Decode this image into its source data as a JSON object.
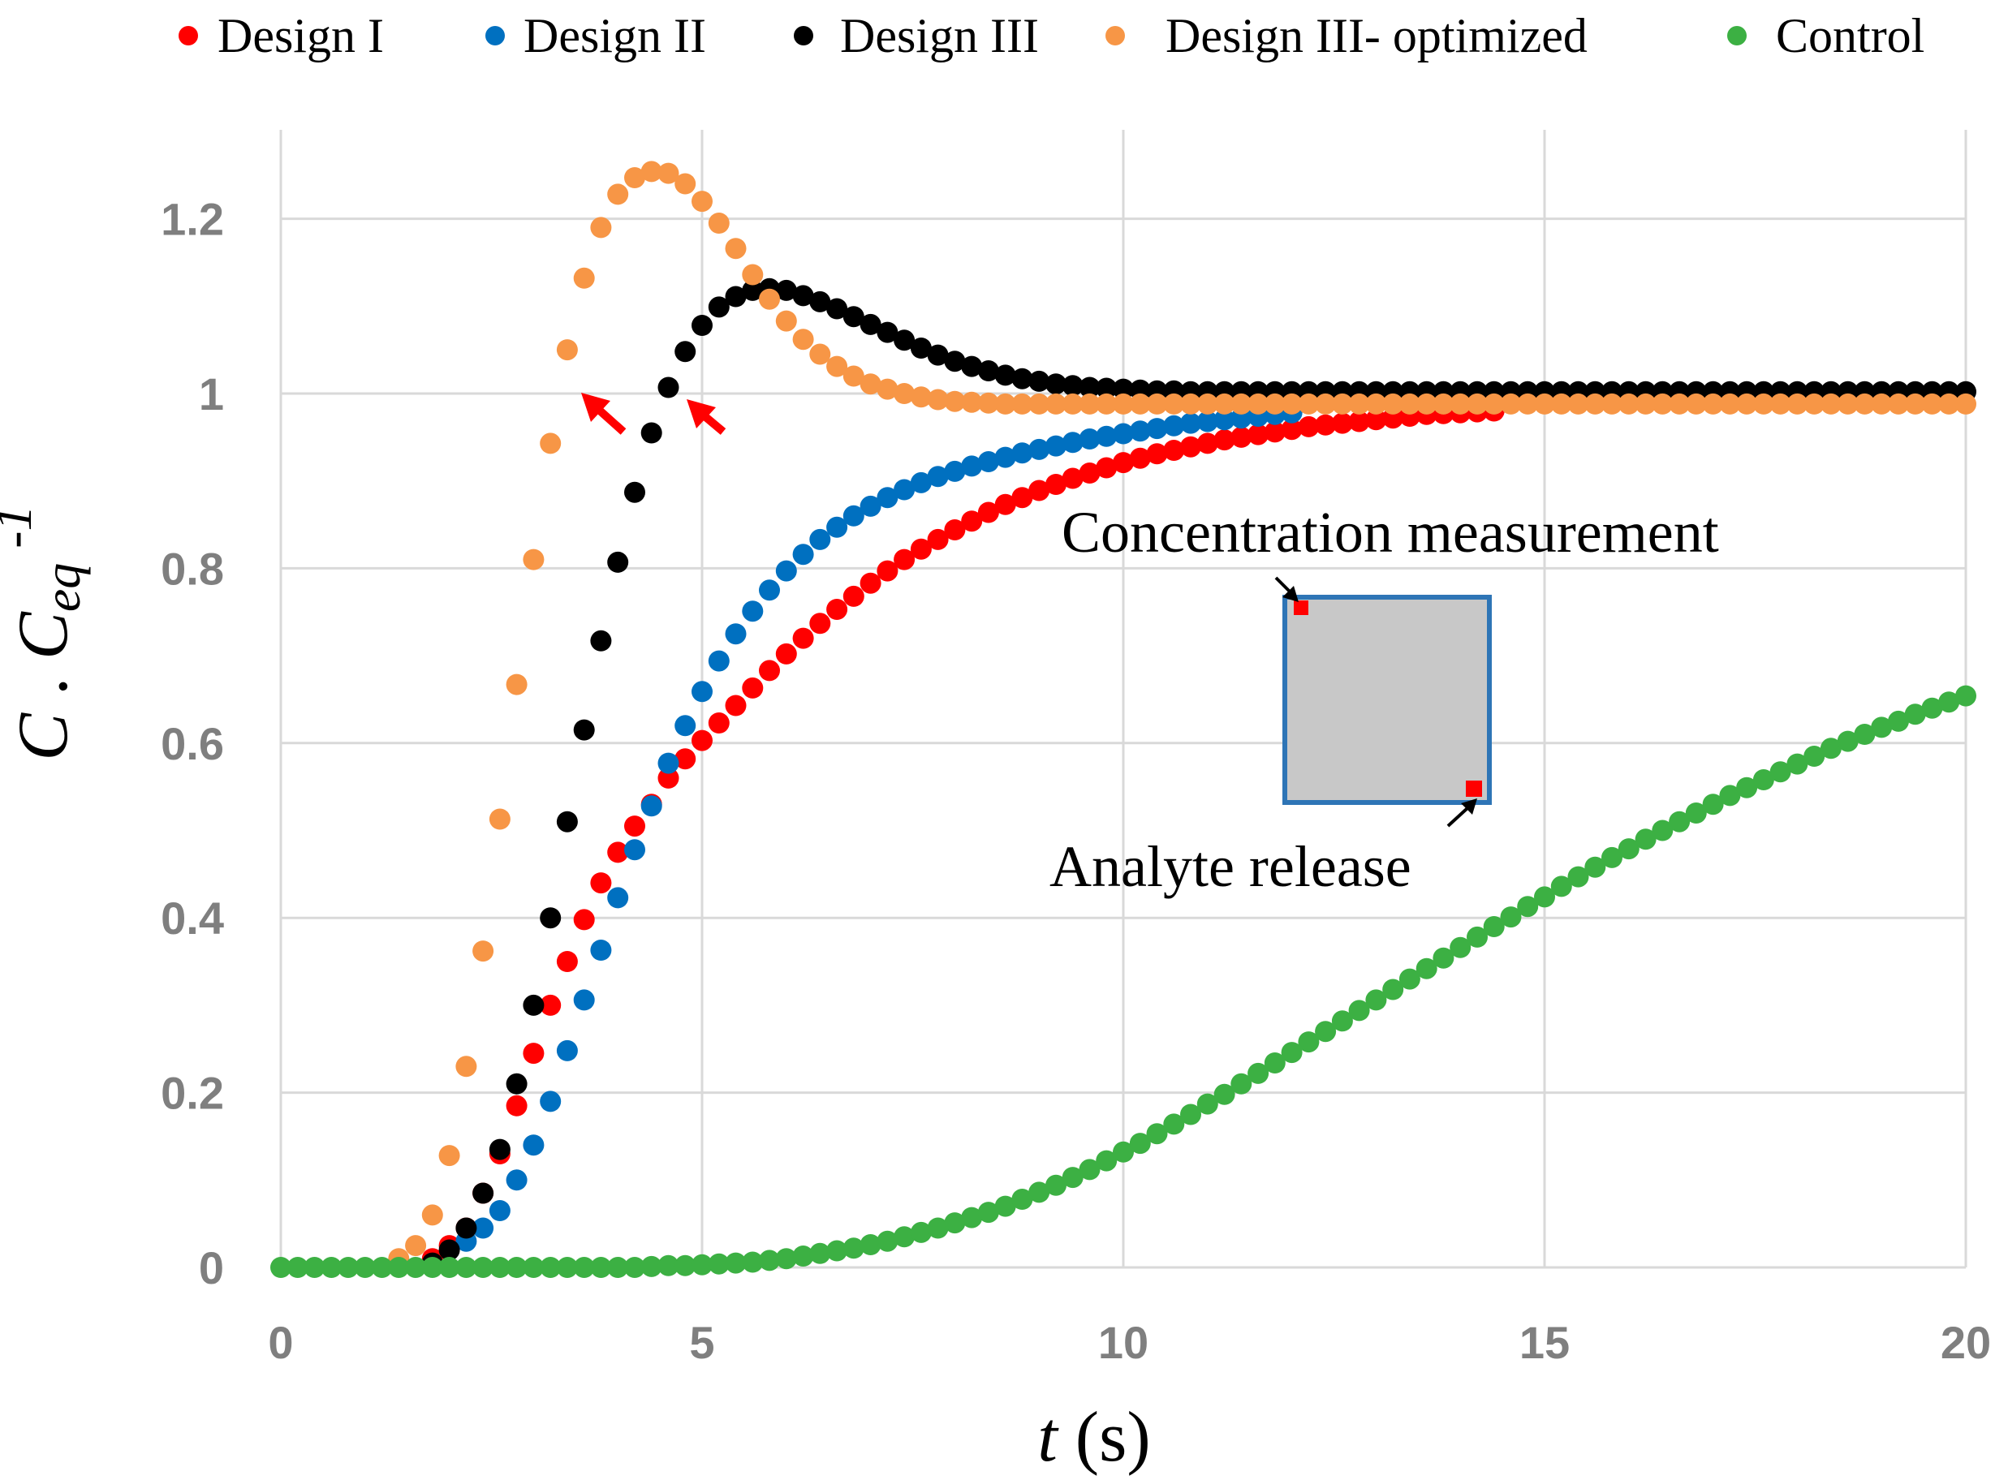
{
  "chart_data": {
    "type": "scatter",
    "xlabel": {
      "var": "t",
      "unit": " (s)"
    },
    "ylabel": {
      "var1": "C",
      "sep": " . ",
      "var2": "C",
      "sub": "eq",
      "sup": "-1"
    },
    "xlim": [
      0,
      20
    ],
    "ylim": [
      0,
      1.3
    ],
    "xticks": [
      "0",
      "5",
      "10",
      "15",
      "20"
    ],
    "yticks": [
      "0",
      "0.2",
      "0.4",
      "0.6",
      "0.8",
      "1",
      "1.2"
    ],
    "grid": true,
    "legend_position": "top",
    "series": [
      {
        "name": "Design I",
        "color": "#ff0000",
        "x": [
          1.8,
          2.0,
          2.2,
          2.4,
          2.6,
          2.8,
          3.0,
          3.2,
          3.4,
          3.6,
          3.8,
          4.0,
          4.2,
          4.4,
          4.6,
          4.8,
          5.0,
          5.2,
          5.4,
          5.6,
          5.8,
          6.0,
          6.2,
          6.4,
          6.6,
          6.8,
          7.0,
          7.2,
          7.4,
          7.6,
          7.8,
          8.0,
          8.2,
          8.4,
          8.6,
          8.8,
          9.0,
          9.2,
          9.4,
          9.6,
          9.8,
          10.0,
          10.2,
          10.4,
          10.6,
          10.8,
          11.0,
          11.2,
          11.4,
          11.6,
          11.8,
          12.0,
          12.2,
          12.4,
          12.6,
          12.8,
          13.0,
          13.2,
          13.4,
          13.6,
          13.8,
          14.0,
          14.2,
          14.4
        ],
        "y": [
          0.01,
          0.025,
          0.045,
          0.085,
          0.13,
          0.185,
          0.245,
          0.3,
          0.35,
          0.398,
          0.44,
          0.475,
          0.505,
          0.53,
          0.56,
          0.582,
          0.603,
          0.623,
          0.643,
          0.663,
          0.683,
          0.702,
          0.72,
          0.737,
          0.753,
          0.768,
          0.783,
          0.797,
          0.81,
          0.822,
          0.833,
          0.844,
          0.854,
          0.864,
          0.873,
          0.881,
          0.889,
          0.896,
          0.903,
          0.909,
          0.915,
          0.921,
          0.926,
          0.931,
          0.935,
          0.939,
          0.943,
          0.947,
          0.95,
          0.953,
          0.956,
          0.959,
          0.962,
          0.964,
          0.966,
          0.968,
          0.97,
          0.972,
          0.974,
          0.976,
          0.977,
          0.978,
          0.979,
          0.98
        ]
      },
      {
        "name": "Design II",
        "color": "#0070c0",
        "x": [
          2.2,
          2.4,
          2.6,
          2.8,
          3.0,
          3.2,
          3.4,
          3.6,
          3.8,
          4.0,
          4.2,
          4.4,
          4.6,
          4.8,
          5.0,
          5.2,
          5.4,
          5.6,
          5.8,
          6.0,
          6.2,
          6.4,
          6.6,
          6.8,
          7.0,
          7.2,
          7.4,
          7.6,
          7.8,
          8.0,
          8.2,
          8.4,
          8.6,
          8.8,
          9.0,
          9.2,
          9.4,
          9.6,
          9.8,
          10.0,
          10.2,
          10.4,
          10.6,
          10.8,
          11.0,
          11.2,
          11.4,
          11.6,
          11.8,
          12.0
        ],
        "y": [
          0.03,
          0.045,
          0.065,
          0.1,
          0.14,
          0.19,
          0.248,
          0.306,
          0.363,
          0.423,
          0.478,
          0.528,
          0.577,
          0.62,
          0.659,
          0.694,
          0.725,
          0.751,
          0.775,
          0.797,
          0.816,
          0.833,
          0.847,
          0.86,
          0.871,
          0.881,
          0.89,
          0.898,
          0.905,
          0.911,
          0.917,
          0.922,
          0.927,
          0.932,
          0.936,
          0.94,
          0.944,
          0.948,
          0.951,
          0.954,
          0.957,
          0.96,
          0.963,
          0.966,
          0.968,
          0.97,
          0.972,
          0.974,
          0.976,
          0.978
        ]
      },
      {
        "name": "Design III",
        "color": "#000000",
        "x": [
          1.8,
          2.0,
          2.2,
          2.4,
          2.6,
          2.8,
          3.0,
          3.2,
          3.4,
          3.6,
          3.8,
          4.0,
          4.2,
          4.4,
          4.6,
          4.8,
          5.0,
          5.2,
          5.4,
          5.6,
          5.8,
          6.0,
          6.2,
          6.4,
          6.6,
          6.8,
          7.0,
          7.2,
          7.4,
          7.6,
          7.8,
          8.0,
          8.2,
          8.4,
          8.6,
          8.8,
          9.0,
          9.2,
          9.4,
          9.6,
          9.8,
          10.0,
          10.2,
          10.4,
          10.6,
          10.8,
          11.0,
          11.2,
          11.4,
          11.6,
          11.8,
          12.0,
          12.2,
          12.4,
          12.6,
          12.8,
          13.0,
          13.2,
          13.4,
          13.6,
          13.8,
          14.0,
          14.2,
          14.4,
          14.6,
          14.8,
          15.0,
          15.2,
          15.4,
          15.6,
          15.8,
          16.0,
          16.2,
          16.4,
          16.6,
          16.8,
          17.0,
          17.2,
          17.4,
          17.6,
          17.8,
          18.0,
          18.2,
          18.4,
          18.6,
          18.8,
          19.0,
          19.2,
          19.4,
          19.6,
          19.8,
          20.0
        ],
        "y": [
          0.005,
          0.02,
          0.045,
          0.085,
          0.135,
          0.21,
          0.3,
          0.4,
          0.51,
          0.615,
          0.717,
          0.807,
          0.887,
          0.955,
          1.007,
          1.048,
          1.078,
          1.099,
          1.111,
          1.118,
          1.12,
          1.118,
          1.112,
          1.105,
          1.097,
          1.088,
          1.079,
          1.07,
          1.061,
          1.052,
          1.044,
          1.037,
          1.031,
          1.026,
          1.021,
          1.017,
          1.014,
          1.011,
          1.009,
          1.007,
          1.006,
          1.005,
          1.004,
          1.003,
          1.003,
          1.002,
          1.002,
          1.002,
          1.002,
          1.002,
          1.002,
          1.002,
          1.002,
          1.002,
          1.002,
          1.002,
          1.002,
          1.002,
          1.002,
          1.002,
          1.002,
          1.002,
          1.002,
          1.002,
          1.002,
          1.002,
          1.002,
          1.002,
          1.002,
          1.002,
          1.002,
          1.002,
          1.002,
          1.002,
          1.002,
          1.002,
          1.002,
          1.002,
          1.002,
          1.002,
          1.002,
          1.002,
          1.002,
          1.002,
          1.002,
          1.002,
          1.002,
          1.002,
          1.002,
          1.002,
          1.002,
          1.002
        ]
      },
      {
        "name": "Design III- optimized",
        "color": "#f79646",
        "x": [
          1.4,
          1.6,
          1.8,
          2.0,
          2.2,
          2.4,
          2.6,
          2.8,
          3.0,
          3.2,
          3.4,
          3.6,
          3.8,
          4.0,
          4.2,
          4.4,
          4.6,
          4.8,
          5.0,
          5.2,
          5.4,
          5.6,
          5.8,
          6.0,
          6.2,
          6.4,
          6.6,
          6.8,
          7.0,
          7.2,
          7.4,
          7.6,
          7.8,
          8.0,
          8.2,
          8.4,
          8.6,
          8.8,
          9.0,
          9.2,
          9.4,
          9.6,
          9.8,
          10.0,
          10.2,
          10.4,
          10.6,
          10.8,
          11.0,
          11.2,
          11.4,
          11.6,
          11.8,
          12.0,
          12.2,
          12.4,
          12.6,
          12.8,
          13.0,
          13.2,
          13.4,
          13.6,
          13.8,
          14.0,
          14.2,
          14.4,
          14.6,
          14.8,
          15.0,
          15.2,
          15.4,
          15.6,
          15.8,
          16.0,
          16.2,
          16.4,
          16.6,
          16.8,
          17.0,
          17.2,
          17.4,
          17.6,
          17.8,
          18.0,
          18.2,
          18.4,
          18.6,
          18.8,
          19.0,
          19.2,
          19.4,
          19.6,
          19.8,
          20.0
        ],
        "y": [
          0.01,
          0.025,
          0.06,
          0.128,
          0.23,
          0.362,
          0.513,
          0.667,
          0.81,
          0.943,
          1.05,
          1.132,
          1.19,
          1.228,
          1.247,
          1.254,
          1.252,
          1.24,
          1.22,
          1.195,
          1.166,
          1.136,
          1.108,
          1.083,
          1.062,
          1.045,
          1.031,
          1.02,
          1.011,
          1.005,
          1.0,
          0.996,
          0.993,
          0.991,
          0.99,
          0.989,
          0.988,
          0.988,
          0.988,
          0.988,
          0.988,
          0.988,
          0.988,
          0.988,
          0.988,
          0.988,
          0.988,
          0.988,
          0.988,
          0.988,
          0.988,
          0.988,
          0.988,
          0.988,
          0.988,
          0.988,
          0.988,
          0.988,
          0.988,
          0.988,
          0.988,
          0.988,
          0.988,
          0.988,
          0.988,
          0.988,
          0.988,
          0.988,
          0.988,
          0.988,
          0.988,
          0.988,
          0.988,
          0.988,
          0.988,
          0.988,
          0.988,
          0.988,
          0.988,
          0.988,
          0.988,
          0.988,
          0.988,
          0.988,
          0.988,
          0.988,
          0.988,
          0.988,
          0.988,
          0.988,
          0.988,
          0.988,
          0.988,
          0.988
        ]
      },
      {
        "name": "Control",
        "color": "#3cb043",
        "x": [
          0.0,
          0.2,
          0.4,
          0.6,
          0.8,
          1.0,
          1.2,
          1.4,
          1.6,
          1.8,
          2.0,
          2.2,
          2.4,
          2.6,
          2.8,
          3.0,
          3.2,
          3.4,
          3.6,
          3.8,
          4.0,
          4.2,
          4.4,
          4.6,
          4.8,
          5.0,
          5.2,
          5.4,
          5.6,
          5.8,
          6.0,
          6.2,
          6.4,
          6.6,
          6.8,
          7.0,
          7.2,
          7.4,
          7.6,
          7.8,
          8.0,
          8.2,
          8.4,
          8.6,
          8.8,
          9.0,
          9.2,
          9.4,
          9.6,
          9.8,
          10.0,
          10.2,
          10.4,
          10.6,
          10.8,
          11.0,
          11.2,
          11.4,
          11.6,
          11.8,
          12.0,
          12.2,
          12.4,
          12.6,
          12.8,
          13.0,
          13.2,
          13.4,
          13.6,
          13.8,
          14.0,
          14.2,
          14.4,
          14.6,
          14.8,
          15.0,
          15.2,
          15.4,
          15.6,
          15.8,
          16.0,
          16.2,
          16.4,
          16.6,
          16.8,
          17.0,
          17.2,
          17.4,
          17.6,
          17.8,
          18.0,
          18.2,
          18.4,
          18.6,
          18.8,
          19.0,
          19.2,
          19.4,
          19.6,
          19.8,
          20.0
        ],
        "y": [
          0,
          0,
          0,
          0,
          0,
          0,
          0,
          0,
          0,
          0,
          0,
          0,
          0,
          0,
          0,
          0,
          0,
          0,
          0,
          0,
          0,
          0,
          0.001,
          0.002,
          0.002,
          0.003,
          0.004,
          0.005,
          0.006,
          0.008,
          0.01,
          0.013,
          0.016,
          0.019,
          0.022,
          0.026,
          0.03,
          0.035,
          0.04,
          0.045,
          0.051,
          0.057,
          0.063,
          0.07,
          0.078,
          0.086,
          0.094,
          0.103,
          0.112,
          0.122,
          0.132,
          0.142,
          0.153,
          0.164,
          0.175,
          0.187,
          0.198,
          0.21,
          0.222,
          0.234,
          0.246,
          0.258,
          0.27,
          0.282,
          0.294,
          0.306,
          0.318,
          0.33,
          0.342,
          0.354,
          0.366,
          0.378,
          0.39,
          0.401,
          0.413,
          0.424,
          0.436,
          0.447,
          0.458,
          0.469,
          0.479,
          0.49,
          0.5,
          0.51,
          0.52,
          0.53,
          0.54,
          0.549,
          0.558,
          0.567,
          0.576,
          0.585,
          0.594,
          0.602,
          0.61,
          0.618,
          0.625,
          0.633,
          0.64,
          0.647,
          0.654
        ]
      }
    ],
    "annotations": [
      "Concentration measurement",
      "Analyte release"
    ]
  }
}
